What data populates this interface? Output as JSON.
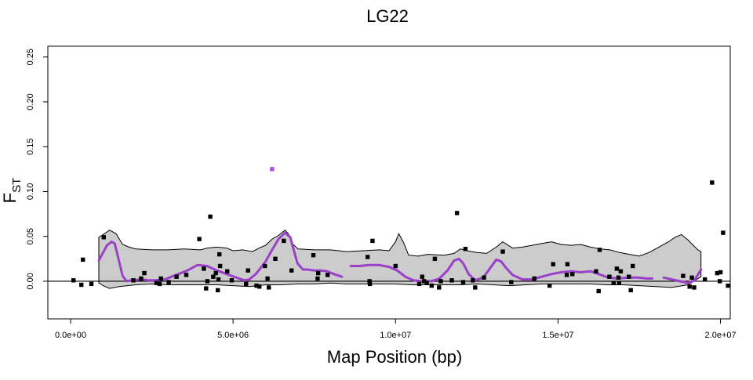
{
  "chart_data": {
    "type": "scatter",
    "title": "LG22",
    "xlabel": "Map Position (bp)",
    "ylabel": "F",
    "ylabel_sub": "ST",
    "xlim": [
      -700000,
      20300000
    ],
    "ylim": [
      -0.042,
      0.262
    ],
    "xticks": [
      0,
      5000000,
      10000000,
      15000000,
      20000000
    ],
    "xtick_labels": [
      "0.0e+00",
      "5.0e+06",
      "1.0e+07",
      "1.5e+07",
      "2.0e+07"
    ],
    "yticks": [
      0.0,
      0.05,
      0.1,
      0.15,
      0.2,
      0.25
    ],
    "ytick_labels": [
      "0.00",
      "0.05",
      "0.10",
      "0.15",
      "0.20",
      "0.25"
    ],
    "grid": false,
    "reference_line_y": 0,
    "colors": {
      "points": "#000000",
      "outlier": "#b450e0",
      "smooth": "#9b40c8",
      "envelope": "#cccccc",
      "envelope_stroke": "#000000"
    },
    "points": [
      [
        90000,
        0.001
      ],
      [
        330000,
        -0.004
      ],
      [
        380000,
        0.024
      ],
      [
        640000,
        -0.003
      ],
      [
        1020000,
        0.049
      ],
      [
        1930000,
        0.001
      ],
      [
        2170000,
        0.003
      ],
      [
        2270000,
        0.009
      ],
      [
        2640000,
        -0.002
      ],
      [
        2740000,
        -0.003
      ],
      [
        2780000,
        0.003
      ],
      [
        3020000,
        -0.001
      ],
      [
        3260000,
        0.005
      ],
      [
        3560000,
        0.007
      ],
      [
        3960000,
        0.047
      ],
      [
        4100000,
        0.014
      ],
      [
        4170000,
        -0.008
      ],
      [
        4210000,
        0.0
      ],
      [
        4300000,
        0.072
      ],
      [
        4390000,
        0.005
      ],
      [
        4470000,
        0.009
      ],
      [
        4530000,
        -0.01
      ],
      [
        4550000,
        0.002
      ],
      [
        4580000,
        0.03
      ],
      [
        4600000,
        0.017
      ],
      [
        4820000,
        0.011
      ],
      [
        4960000,
        0.001
      ],
      [
        5400000,
        -0.003
      ],
      [
        5460000,
        0.012
      ],
      [
        5720000,
        -0.005
      ],
      [
        5810000,
        -0.006
      ],
      [
        5980000,
        0.017
      ],
      [
        6060000,
        0.003
      ],
      [
        6100000,
        -0.007
      ],
      [
        6300000,
        0.025
      ],
      [
        6560000,
        0.045
      ],
      [
        6800000,
        0.012
      ],
      [
        7470000,
        0.029
      ],
      [
        7600000,
        0.003
      ],
      [
        7620000,
        0.009
      ],
      [
        7910000,
        0.007
      ],
      [
        9140000,
        0.027
      ],
      [
        9200000,
        0.0
      ],
      [
        9210000,
        -0.003
      ],
      [
        9290000,
        0.045
      ],
      [
        10000000,
        0.017
      ],
      [
        10730000,
        -0.003
      ],
      [
        10820000,
        0.005
      ],
      [
        10880000,
        0.0
      ],
      [
        10960000,
        -0.002
      ],
      [
        11110000,
        -0.005
      ],
      [
        11210000,
        0.025
      ],
      [
        11340000,
        -0.007
      ],
      [
        11390000,
        0.0
      ],
      [
        11730000,
        0.001
      ],
      [
        11890000,
        0.076
      ],
      [
        12080000,
        -0.001
      ],
      [
        12150000,
        0.036
      ],
      [
        12380000,
        0.001
      ],
      [
        12450000,
        -0.007
      ],
      [
        12720000,
        0.004
      ],
      [
        13300000,
        0.033
      ],
      [
        13560000,
        -0.001
      ],
      [
        14270000,
        0.003
      ],
      [
        14740000,
        -0.005
      ],
      [
        14850000,
        0.019
      ],
      [
        15270000,
        0.007
      ],
      [
        15290000,
        0.019
      ],
      [
        15440000,
        0.008
      ],
      [
        16170000,
        0.011
      ],
      [
        16250000,
        -0.011
      ],
      [
        16280000,
        0.035
      ],
      [
        16580000,
        0.005
      ],
      [
        16710000,
        -0.002
      ],
      [
        16810000,
        0.014
      ],
      [
        16860000,
        0.004
      ],
      [
        16880000,
        -0.002
      ],
      [
        16930000,
        0.011
      ],
      [
        17180000,
        0.005
      ],
      [
        17240000,
        -0.01
      ],
      [
        17300000,
        0.017
      ],
      [
        18850000,
        0.006
      ],
      [
        19050000,
        -0.006
      ],
      [
        19120000,
        0.004
      ],
      [
        19190000,
        -0.007
      ],
      [
        19520000,
        0.002
      ],
      [
        19740000,
        0.11
      ],
      [
        19900000,
        0.009
      ],
      [
        19980000,
        0.0
      ],
      [
        20000000,
        0.01
      ],
      [
        20080000,
        0.054
      ],
      [
        20230000,
        -0.005
      ]
    ],
    "outlier_points": [
      [
        6200000,
        0.125
      ]
    ],
    "smooth_segments": [
      [
        [
          870000,
          0.023
        ],
        [
          1000000,
          0.032
        ],
        [
          1120000,
          0.04
        ],
        [
          1260000,
          0.044
        ],
        [
          1360000,
          0.042
        ],
        [
          1460000,
          0.027
        ],
        [
          1600000,
          0.006
        ],
        [
          1720000,
          0.0
        ],
        [
          1900000,
          0.001
        ],
        [
          2200000,
          0.002
        ],
        [
          2400000,
          0.001
        ],
        [
          2600000,
          0.001
        ],
        [
          2900000,
          0.002
        ],
        [
          3250000,
          0.007
        ],
        [
          3600000,
          0.012
        ],
        [
          3900000,
          0.018
        ],
        [
          4200000,
          0.017
        ],
        [
          4500000,
          0.012
        ],
        [
          4800000,
          0.008
        ],
        [
          5100000,
          0.004
        ],
        [
          5350000,
          0.001
        ],
        [
          5500000,
          0.002
        ],
        [
          5700000,
          0.008
        ],
        [
          5850000,
          0.015
        ],
        [
          6000000,
          0.022
        ],
        [
          6200000,
          0.035
        ],
        [
          6400000,
          0.047
        ],
        [
          6600000,
          0.054
        ],
        [
          6760000,
          0.049
        ],
        [
          6850000,
          0.037
        ],
        [
          6980000,
          0.02
        ],
        [
          7150000,
          0.013
        ],
        [
          7300000,
          0.013
        ],
        [
          7500000,
          0.012
        ],
        [
          7700000,
          0.012
        ],
        [
          7900000,
          0.011
        ],
        [
          8100000,
          0.008
        ],
        [
          8350000,
          0.005
        ]
      ],
      [
        [
          8620000,
          0.017
        ],
        [
          8900000,
          0.017
        ],
        [
          9200000,
          0.018
        ],
        [
          9500000,
          0.018
        ],
        [
          9800000,
          0.016
        ],
        [
          10050000,
          0.012
        ],
        [
          10300000,
          0.005
        ],
        [
          10550000,
          0.001
        ],
        [
          10800000,
          0.0
        ],
        [
          11100000,
          0.0
        ],
        [
          11350000,
          0.003
        ],
        [
          11600000,
          0.012
        ],
        [
          11800000,
          0.023
        ],
        [
          11950000,
          0.025
        ],
        [
          12080000,
          0.02
        ],
        [
          12250000,
          0.008
        ],
        [
          12450000,
          0.001
        ],
        [
          12700000,
          0.004
        ],
        [
          12900000,
          0.014
        ],
        [
          13100000,
          0.024
        ],
        [
          13250000,
          0.022
        ],
        [
          13400000,
          0.015
        ],
        [
          13600000,
          0.007
        ],
        [
          13900000,
          0.002
        ],
        [
          14200000,
          0.002
        ],
        [
          14500000,
          0.005
        ],
        [
          14800000,
          0.008
        ],
        [
          15100000,
          0.01
        ],
        [
          15400000,
          0.011
        ],
        [
          15700000,
          0.01
        ],
        [
          16000000,
          0.011
        ],
        [
          16250000,
          0.008
        ],
        [
          16550000,
          0.004
        ],
        [
          16850000,
          0.003
        ],
        [
          17150000,
          0.004
        ],
        [
          17450000,
          0.004
        ],
        [
          17750000,
          0.003
        ],
        [
          17900000,
          0.003
        ]
      ],
      [
        [
          18250000,
          0.004
        ],
        [
          18500000,
          0.002
        ],
        [
          18750000,
          0.0
        ],
        [
          19000000,
          -0.002
        ],
        [
          19200000,
          0.001
        ],
        [
          19400000,
          0.013
        ]
      ]
    ],
    "envelope_upper": [
      [
        870000,
        0.049
      ],
      [
        1000000,
        0.052
      ],
      [
        1200000,
        0.057
      ],
      [
        1400000,
        0.053
      ],
      [
        1600000,
        0.041
      ],
      [
        1800000,
        0.038
      ],
      [
        2000000,
        0.036
      ],
      [
        2500000,
        0.035
      ],
      [
        3000000,
        0.035
      ],
      [
        3500000,
        0.036
      ],
      [
        4000000,
        0.035
      ],
      [
        4200000,
        0.037
      ],
      [
        4500000,
        0.038
      ],
      [
        4800000,
        0.037
      ],
      [
        5000000,
        0.034
      ],
      [
        5300000,
        0.035
      ],
      [
        5600000,
        0.033
      ],
      [
        5800000,
        0.037
      ],
      [
        6000000,
        0.04
      ],
      [
        6200000,
        0.047
      ],
      [
        6400000,
        0.051
      ],
      [
        6600000,
        0.057
      ],
      [
        6700000,
        0.053
      ],
      [
        6850000,
        0.041
      ],
      [
        7000000,
        0.036
      ],
      [
        7500000,
        0.035
      ],
      [
        8000000,
        0.035
      ],
      [
        8500000,
        0.033
      ],
      [
        9000000,
        0.034
      ],
      [
        9500000,
        0.035
      ],
      [
        9800000,
        0.034
      ],
      [
        10000000,
        0.044
      ],
      [
        10100000,
        0.053
      ],
      [
        10250000,
        0.043
      ],
      [
        10400000,
        0.029
      ],
      [
        10700000,
        0.028
      ],
      [
        11000000,
        0.03
      ],
      [
        11500000,
        0.029
      ],
      [
        11800000,
        0.031
      ],
      [
        12000000,
        0.036
      ],
      [
        12200000,
        0.034
      ],
      [
        12500000,
        0.032
      ],
      [
        12800000,
        0.031
      ],
      [
        13100000,
        0.038
      ],
      [
        13300000,
        0.044
      ],
      [
        13600000,
        0.037
      ],
      [
        13900000,
        0.038
      ],
      [
        14200000,
        0.04
      ],
      [
        14500000,
        0.042
      ],
      [
        14800000,
        0.044
      ],
      [
        15100000,
        0.041
      ],
      [
        15400000,
        0.04
      ],
      [
        15700000,
        0.041
      ],
      [
        16000000,
        0.038
      ],
      [
        16300000,
        0.036
      ],
      [
        16600000,
        0.035
      ],
      [
        16900000,
        0.032
      ],
      [
        17200000,
        0.03
      ],
      [
        17500000,
        0.028
      ],
      [
        17800000,
        0.032
      ],
      [
        18100000,
        0.038
      ],
      [
        18400000,
        0.044
      ],
      [
        18600000,
        0.049
      ],
      [
        18800000,
        0.052
      ],
      [
        19000000,
        0.046
      ],
      [
        19300000,
        0.035
      ],
      [
        19400000,
        0.033
      ]
    ],
    "envelope_lower": [
      [
        870000,
        -0.002
      ],
      [
        1000000,
        -0.005
      ],
      [
        1200000,
        -0.008
      ],
      [
        1500000,
        -0.006
      ],
      [
        2000000,
        -0.004
      ],
      [
        2500000,
        -0.003
      ],
      [
        3000000,
        -0.004
      ],
      [
        3500000,
        -0.004
      ],
      [
        4000000,
        -0.004
      ],
      [
        4500000,
        -0.004
      ],
      [
        5000000,
        -0.005
      ],
      [
        5500000,
        -0.006
      ],
      [
        6000000,
        -0.004
      ],
      [
        6500000,
        -0.004
      ],
      [
        7000000,
        -0.003
      ],
      [
        7500000,
        -0.003
      ],
      [
        8000000,
        -0.002
      ],
      [
        8500000,
        -0.003
      ],
      [
        9000000,
        -0.003
      ],
      [
        9500000,
        -0.003
      ],
      [
        10000000,
        -0.003
      ],
      [
        10500000,
        -0.004
      ],
      [
        11000000,
        -0.004
      ],
      [
        11500000,
        -0.004
      ],
      [
        12000000,
        -0.004
      ],
      [
        12500000,
        -0.003
      ],
      [
        13000000,
        -0.004
      ],
      [
        13500000,
        -0.005
      ],
      [
        14000000,
        -0.004
      ],
      [
        14500000,
        -0.003
      ],
      [
        15000000,
        -0.003
      ],
      [
        15500000,
        -0.003
      ],
      [
        16000000,
        -0.003
      ],
      [
        16500000,
        -0.004
      ],
      [
        17000000,
        -0.004
      ],
      [
        17500000,
        -0.005
      ],
      [
        18000000,
        -0.006
      ],
      [
        18500000,
        -0.007
      ],
      [
        19000000,
        -0.004
      ],
      [
        19400000,
        0.005
      ]
    ]
  }
}
